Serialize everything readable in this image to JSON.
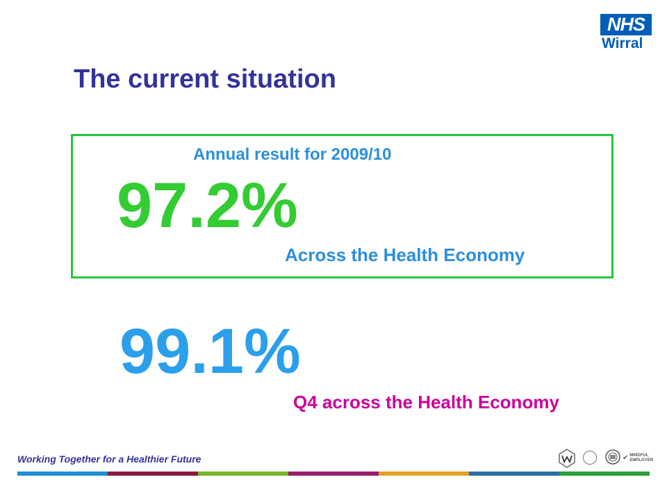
{
  "logo": {
    "mark": "NHS",
    "organisation": "Wirral",
    "brand_color": "#005EB8"
  },
  "slide": {
    "title": "The current situation",
    "annual_label": "Annual result for 2009/10",
    "annual_value": "97.2%",
    "annual_scope": "Across the Health Economy",
    "q4_value": "99.1%",
    "q4_scope": "Q4 across the Health Economy"
  },
  "footer": {
    "tagline": "Working Together for a Healthier Future",
    "badges": [
      "accreditation-badge",
      "investors-in-people-badge",
      "crest-badge",
      "mindful-employer-badge"
    ],
    "badge_mindful_text": "MINDFUL EMPLOYER",
    "stripe_colors": [
      "#1E8FD6",
      "#8B1A3F",
      "#78B82A",
      "#9A1E6C",
      "#E5A028",
      "#2A6FA8",
      "#2E9E3A"
    ]
  },
  "colors": {
    "title": "#333399",
    "box_border": "#22C83A",
    "annual_value": "#33CC33",
    "label_blue": "#2B8FDB",
    "q4_value": "#2B9FEA",
    "q4_label": "#CC0099"
  }
}
